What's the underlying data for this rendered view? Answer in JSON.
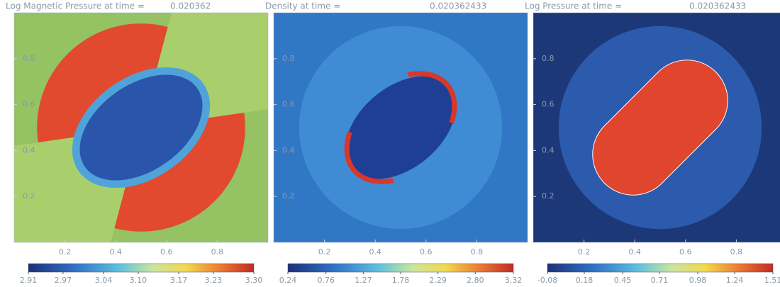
{
  "chart_data": [
    {
      "type": "heatmap",
      "title": "Log Magnetic Pressure at time =",
      "time": "0.020362",
      "xlim": [
        0,
        1
      ],
      "ylim": [
        0,
        1
      ],
      "xticks": [
        0.2,
        0.4,
        0.6,
        0.8
      ],
      "yticks": [
        0.2,
        0.4,
        0.6,
        0.8
      ],
      "clim": [
        2.91,
        3.3
      ],
      "cticks": [
        2.91,
        2.97,
        3.04,
        {
          "value": 3.1,
          "label": "3.10"
        },
        3.17,
        3.23,
        {
          "value": 3.3,
          "label": "3.30"
        }
      ]
    },
    {
      "type": "heatmap",
      "title": "Density at time =",
      "time": "0.020362433",
      "xlim": [
        0,
        1
      ],
      "ylim": [
        0,
        1
      ],
      "xticks": [
        0.2,
        0.4,
        0.6,
        0.8
      ],
      "yticks": [
        0.2,
        0.4,
        0.6,
        0.8
      ],
      "clim": [
        0.24,
        3.32
      ],
      "cticks": [
        0.24,
        0.76,
        1.27,
        1.78,
        2.29,
        {
          "value": 2.8,
          "label": "2.80"
        },
        3.32
      ]
    },
    {
      "type": "heatmap",
      "title": "Log Pressure at time =",
      "time": "0.020362433",
      "xlim": [
        0,
        1
      ],
      "ylim": [
        0,
        1
      ],
      "xticks": [
        0.2,
        0.4,
        0.6,
        0.8
      ],
      "yticks": [
        0.2,
        0.4,
        0.6,
        0.8
      ],
      "clim": [
        -0.08,
        1.51
      ],
      "cticks": [
        -0.08,
        0.18,
        0.45,
        0.71,
        0.98,
        1.24,
        1.51
      ]
    }
  ]
}
